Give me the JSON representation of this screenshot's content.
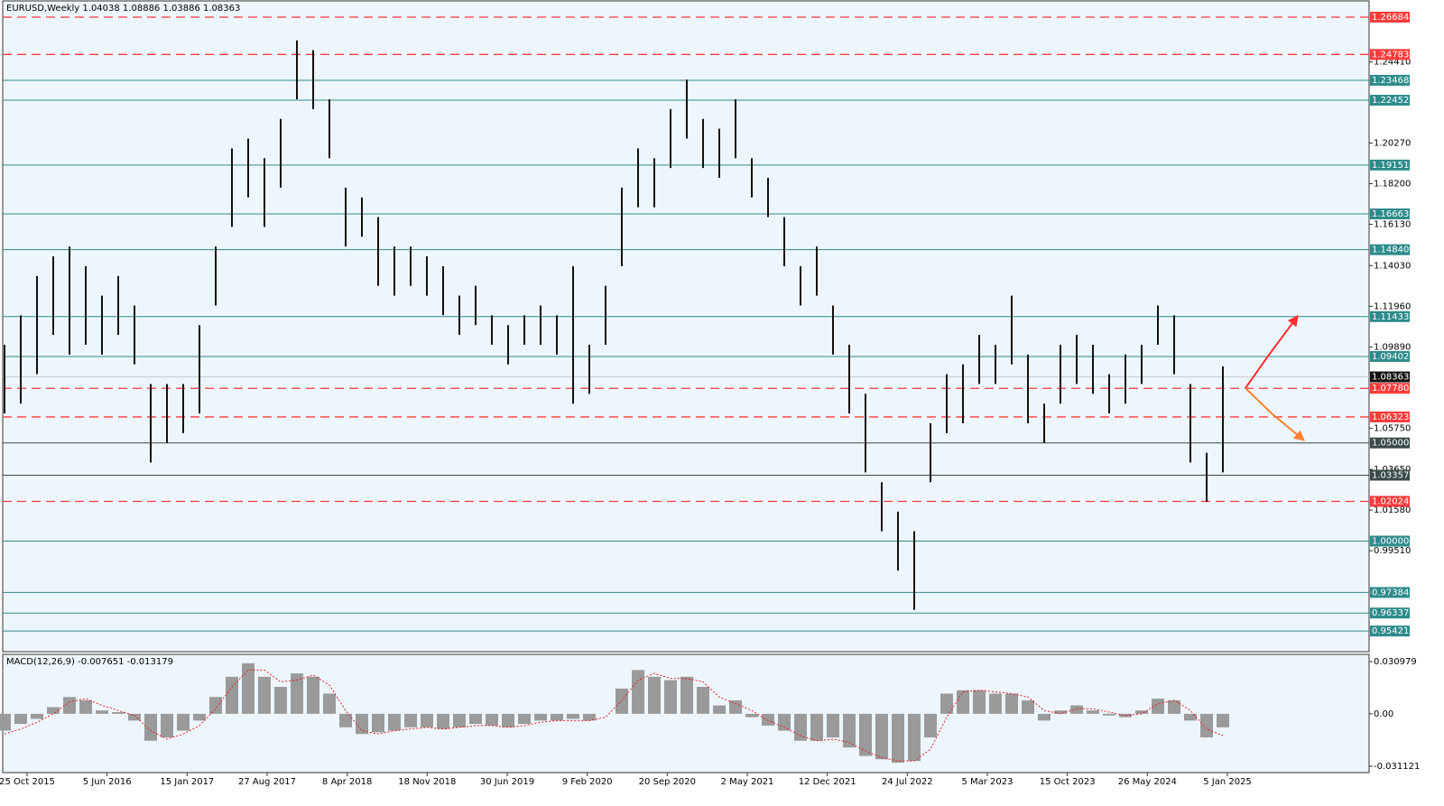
{
  "chart_data": {
    "type": "candlestick",
    "title": "EURUSD,Weekly  1.04038 1.08886 1.03886 1.08363",
    "ylim": [
      0.9437,
      1.2751
    ],
    "yticks": [
      {
        "value": 1.2441,
        "label": "1.24410"
      },
      {
        "value": 1.2027,
        "label": "1.20270"
      },
      {
        "value": 1.182,
        "label": "1.18200"
      },
      {
        "value": 1.1613,
        "label": "1.16130"
      },
      {
        "value": 1.1403,
        "label": "1.14030"
      },
      {
        "value": 1.1196,
        "label": "1.11960"
      },
      {
        "value": 1.0989,
        "label": "1.09890"
      },
      {
        "value": 1.0575,
        "label": "1.05750"
      },
      {
        "value": 1.0365,
        "label": "1.03650"
      },
      {
        "value": 1.0158,
        "label": "1.01580"
      },
      {
        "value": 0.9951,
        "label": "0.99510"
      }
    ],
    "levels": [
      {
        "price": 1.26684,
        "label": "1.26684",
        "style": "dashed",
        "color": "#ff3b3b"
      },
      {
        "price": 1.24783,
        "label": "1.24783",
        "style": "dashed",
        "color": "#ff3b3b"
      },
      {
        "price": 1.23468,
        "label": "1.23468",
        "style": "solid",
        "color": "#2e8b8b"
      },
      {
        "price": 1.22452,
        "label": "1.22452",
        "style": "solid",
        "color": "#2e8b8b"
      },
      {
        "price": 1.19151,
        "label": "1.19151",
        "style": "solid",
        "color": "#2e8b8b"
      },
      {
        "price": 1.16663,
        "label": "1.16663",
        "style": "solid",
        "color": "#2e8b8b"
      },
      {
        "price": 1.1484,
        "label": "1.14840",
        "style": "solid",
        "color": "#2e8b8b"
      },
      {
        "price": 1.11433,
        "label": "1.11433",
        "style": "solid",
        "color": "#2e8b8b"
      },
      {
        "price": 1.09402,
        "label": "1.09402",
        "style": "solid",
        "color": "#2e8b8b"
      },
      {
        "price": 1.08363,
        "label": "1.08363",
        "style": "solid",
        "color": "#c8c8c8",
        "label_color": "#111"
      },
      {
        "price": 1.0778,
        "label": "1.07780",
        "style": "dashed",
        "color": "#ff3b3b"
      },
      {
        "price": 1.06323,
        "label": "1.06323",
        "style": "dashed",
        "color": "#ff3b3b"
      },
      {
        "price": 1.05,
        "label": "1.05000",
        "style": "solid",
        "color": "#3a4a4a"
      },
      {
        "price": 1.03357,
        "label": "1.03357",
        "style": "solid",
        "color": "#3a4a4a"
      },
      {
        "price": 1.02024,
        "label": "1.02024",
        "style": "dashed",
        "color": "#ff3b3b"
      },
      {
        "price": 1.0,
        "label": "1.00000",
        "style": "solid",
        "color": "#2e8b8b"
      },
      {
        "price": 0.97384,
        "label": "0.97384",
        "style": "solid",
        "color": "#2e8b8b"
      },
      {
        "price": 0.96337,
        "label": "0.96337",
        "style": "solid",
        "color": "#2e8b8b"
      },
      {
        "price": 0.95421,
        "label": "0.95421",
        "style": "solid",
        "color": "#2e8b8b"
      }
    ],
    "x_labels": [
      "25 Oct 2015",
      "5 Jun 2016",
      "15 Jan 2017",
      "27 Aug 2017",
      "8 Apr 2018",
      "18 Nov 2018",
      "30 Jun 2019",
      "9 Feb 2020",
      "20 Sep 2020",
      "2 May 2021",
      "12 Dec 2021",
      "24 Jul 2022",
      "5 Mar 2023",
      "15 Oct 2023",
      "26 May 2024",
      "5 Jan 2025"
    ],
    "color": "#111111",
    "low": [
      1.065,
      1.07,
      1.085,
      1.105,
      1.095,
      1.1,
      1.095,
      1.105,
      1.09,
      1.04,
      1.05,
      1.055,
      1.065,
      1.12,
      1.16,
      1.175,
      1.16,
      1.18,
      1.225,
      1.22,
      1.195,
      1.15,
      1.155,
      1.13,
      1.125,
      1.13,
      1.125,
      1.115,
      1.105,
      1.11,
      1.1,
      1.09,
      1.1,
      1.1,
      1.095,
      1.07,
      1.075,
      1.1,
      1.14,
      1.17,
      1.17,
      1.19,
      1.205,
      1.19,
      1.185,
      1.195,
      1.175,
      1.165,
      1.14,
      1.12,
      1.125,
      1.095,
      1.065,
      1.035,
      1.005,
      0.985,
      0.965,
      1.03,
      1.055,
      1.06,
      1.08,
      1.08,
      1.09,
      1.06,
      1.05,
      1.07,
      1.08,
      1.075,
      1.065,
      1.07,
      1.08,
      1.1,
      1.085,
      1.04,
      1.02,
      1.035
    ],
    "high": [
      1.1,
      1.115,
      1.135,
      1.145,
      1.15,
      1.14,
      1.125,
      1.135,
      1.12,
      1.08,
      1.08,
      1.08,
      1.11,
      1.15,
      1.2,
      1.205,
      1.195,
      1.215,
      1.255,
      1.25,
      1.225,
      1.18,
      1.175,
      1.165,
      1.15,
      1.15,
      1.145,
      1.14,
      1.125,
      1.13,
      1.115,
      1.11,
      1.115,
      1.12,
      1.115,
      1.14,
      1.1,
      1.13,
      1.18,
      1.2,
      1.195,
      1.22,
      1.235,
      1.215,
      1.21,
      1.225,
      1.195,
      1.185,
      1.165,
      1.14,
      1.15,
      1.12,
      1.1,
      1.075,
      1.03,
      1.015,
      1.005,
      1.06,
      1.085,
      1.09,
      1.105,
      1.1,
      1.125,
      1.095,
      1.07,
      1.1,
      1.105,
      1.1,
      1.085,
      1.095,
      1.1,
      1.12,
      1.115,
      1.08,
      1.045,
      1.089
    ],
    "macd": {
      "title": "MACD(12,26,9) -0.007651 -0.013179",
      "ylim": [
        -0.0349,
        0.0353
      ],
      "yticks": [
        0.030979,
        {
          "value": 0,
          "label": "0.00"
        },
        -0.031121
      ],
      "histogram_color": "#9a9a9a",
      "signal_color": "#e02020",
      "values": [
        -0.01,
        -0.006,
        -0.003,
        0.004,
        0.01,
        0.008,
        0.002,
        0.001,
        -0.004,
        -0.016,
        -0.014,
        -0.01,
        -0.004,
        0.01,
        0.022,
        0.03,
        0.022,
        0.016,
        0.024,
        0.022,
        0.012,
        -0.008,
        -0.012,
        -0.011,
        -0.01,
        -0.008,
        -0.008,
        -0.009,
        -0.008,
        -0.006,
        -0.007,
        -0.008,
        -0.006,
        -0.004,
        -0.004,
        -0.003,
        -0.004,
        0,
        0.015,
        0.026,
        0.022,
        0.02,
        0.022,
        0.016,
        0.005,
        0.008,
        -0.002,
        -0.007,
        -0.01,
        -0.016,
        -0.016,
        -0.014,
        -0.02,
        -0.025,
        -0.027,
        -0.029,
        -0.028,
        -0.014,
        0.012,
        0.014,
        0.014,
        0.012,
        0.012,
        0.008,
        -0.004,
        0.002,
        0.005,
        0.002,
        -0.001,
        -0.002,
        0.002,
        0.009,
        0.008,
        -0.004,
        -0.014,
        -0.008
      ],
      "signal": [
        -0.012,
        -0.009,
        -0.005,
        0,
        0.007,
        0.009,
        0.005,
        0.002,
        -0.001,
        -0.01,
        -0.015,
        -0.012,
        -0.007,
        0.003,
        0.016,
        0.026,
        0.026,
        0.019,
        0.02,
        0.023,
        0.017,
        0.002,
        -0.01,
        -0.012,
        -0.01,
        -0.009,
        -0.008,
        -0.009,
        -0.008,
        -0.007,
        -0.007,
        -0.008,
        -0.007,
        -0.005,
        -0.004,
        -0.004,
        -0.004,
        -0.002,
        0.008,
        0.02,
        0.024,
        0.021,
        0.021,
        0.019,
        0.01,
        0.006,
        0.002,
        -0.004,
        -0.008,
        -0.013,
        -0.016,
        -0.015,
        -0.017,
        -0.022,
        -0.026,
        -0.028,
        -0.028,
        -0.021,
        -0.002,
        0.013,
        0.014,
        0.013,
        0.012,
        0.01,
        0.002,
        0,
        0.003,
        0.003,
        0.001,
        -0.001,
        0,
        0.006,
        0.008,
        0.002,
        -0.009,
        -0.013
      ]
    }
  }
}
